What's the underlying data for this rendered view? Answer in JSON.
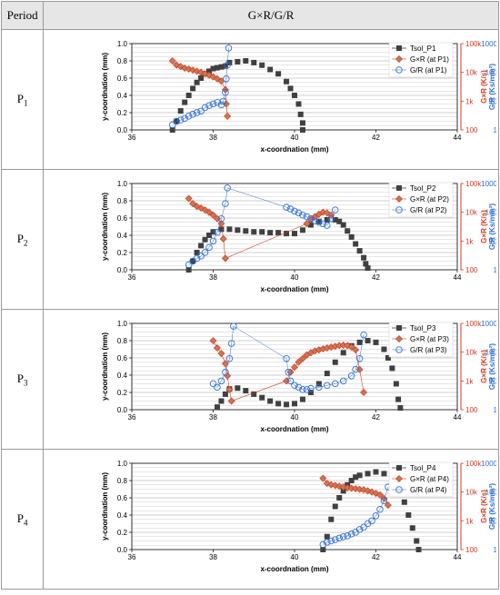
{
  "header": {
    "period": "Period",
    "title": "G×R/G/R"
  },
  "colors": {
    "tsol": "#404040",
    "gr_red": "#d9381e",
    "g_over_r": "#2e6fd6",
    "grid": "#bfbfbf"
  },
  "chart_data": [
    {
      "period_label": "P",
      "period_sub": "1",
      "type": "scatter",
      "xlabel": "x-coordnation (mm)",
      "ylabel": "y-coordnation (mm)",
      "y2label": "G×R (K/s)",
      "y3label": "G/R (Ks/mm²)",
      "xlim": [
        36,
        44
      ],
      "ylim": [
        0,
        1.0
      ],
      "xticks": [
        "36",
        "38",
        "40",
        "42",
        "44"
      ],
      "yticks": [
        "0.0",
        "0.2",
        "0.4",
        "0.6",
        "0.8",
        "1.0"
      ],
      "y2ticks": [
        "100",
        "1k",
        "10k",
        "100k"
      ],
      "y3ticks": [
        "1",
        "10",
        "100",
        "1000"
      ],
      "legend": [
        "Tsol_P1",
        "G×R (at P1)",
        "G/R (at P1)"
      ],
      "series": [
        {
          "key": "tsol",
          "x": [
            37.0,
            37.1,
            37.2,
            37.3,
            37.4,
            37.5,
            37.6,
            37.7,
            37.8,
            37.9,
            38.0,
            38.1,
            38.2,
            38.3,
            38.4,
            38.6,
            38.8,
            39.0,
            39.2,
            39.4,
            39.6,
            39.8,
            39.9,
            40.0,
            40.1,
            40.15,
            40.2,
            40.2
          ],
          "y": [
            0.0,
            0.1,
            0.22,
            0.32,
            0.4,
            0.48,
            0.55,
            0.6,
            0.65,
            0.68,
            0.71,
            0.72,
            0.73,
            0.74,
            0.78,
            0.79,
            0.8,
            0.78,
            0.75,
            0.7,
            0.65,
            0.56,
            0.48,
            0.4,
            0.3,
            0.18,
            0.08,
            0.0
          ]
        },
        {
          "key": "gr",
          "x": [
            37.0,
            37.1,
            37.2,
            37.3,
            37.4,
            37.5,
            37.6,
            37.7,
            37.8,
            37.9,
            38.0,
            38.1,
            38.2,
            38.3,
            38.32,
            38.35
          ],
          "y": [
            25000,
            18000,
            16000,
            14000,
            13000,
            12000,
            11000,
            10000,
            9000,
            8000,
            7000,
            6000,
            5000,
            2500,
            800,
            300
          ]
        },
        {
          "key": "g_over_r",
          "x": [
            37.0,
            37.1,
            37.2,
            37.3,
            37.4,
            37.5,
            37.6,
            37.7,
            37.8,
            37.9,
            38.0,
            38.1,
            38.2,
            38.25,
            38.3,
            38.32,
            38.35,
            38.38
          ],
          "y": [
            1.5,
            2,
            2.2,
            2.5,
            3,
            3.5,
            4,
            4.5,
            6,
            7,
            8,
            9,
            7.5,
            10,
            20,
            60,
            180,
            700
          ]
        }
      ]
    },
    {
      "period_label": "P",
      "period_sub": "2",
      "type": "scatter",
      "xlabel": "x-coordnation (mm)",
      "ylabel": "y-coordnation (mm)",
      "y2label": "G×R (K/s)",
      "y3label": "G/R (Ks/mm²)",
      "xlim": [
        36,
        44
      ],
      "ylim": [
        0,
        1.0
      ],
      "xticks": [
        "36",
        "38",
        "40",
        "42",
        "44"
      ],
      "yticks": [
        "0.0",
        "0.2",
        "0.4",
        "0.6",
        "0.8",
        "1.0"
      ],
      "y2ticks": [
        "100",
        "1k",
        "10k",
        "100k"
      ],
      "y3ticks": [
        "1",
        "10",
        "100",
        "1000"
      ],
      "legend": [
        "Tsol_P2",
        "G×R (at P2)",
        "G/R (at P2)"
      ],
      "series": [
        {
          "key": "tsol",
          "x": [
            37.4,
            37.5,
            37.6,
            37.7,
            37.8,
            37.9,
            38.0,
            38.2,
            38.4,
            38.6,
            38.8,
            39.0,
            39.2,
            39.4,
            39.6,
            39.8,
            40.0,
            40.2,
            40.4,
            40.6,
            40.8,
            41.0,
            41.1,
            41.2,
            41.3,
            41.4,
            41.5,
            41.6,
            41.7,
            41.75,
            41.8
          ],
          "y": [
            0.0,
            0.1,
            0.2,
            0.28,
            0.35,
            0.4,
            0.44,
            0.47,
            0.47,
            0.46,
            0.45,
            0.44,
            0.44,
            0.43,
            0.43,
            0.42,
            0.42,
            0.46,
            0.52,
            0.56,
            0.58,
            0.58,
            0.56,
            0.52,
            0.45,
            0.38,
            0.3,
            0.22,
            0.14,
            0.07,
            0.02
          ]
        },
        {
          "key": "gr",
          "x": [
            37.4,
            37.5,
            37.6,
            37.7,
            37.8,
            37.9,
            38.0,
            38.1,
            38.2,
            38.25,
            38.3,
            40.3,
            40.4,
            40.5,
            40.6,
            40.7,
            40.8,
            40.9
          ],
          "y": [
            30000,
            20000,
            16000,
            14000,
            12000,
            10000,
            8000,
            6000,
            4000,
            1200,
            250,
            4000,
            5500,
            7000,
            8500,
            10000,
            9500,
            8000
          ]
        },
        {
          "key": "g_over_r",
          "x": [
            37.4,
            37.5,
            37.6,
            37.7,
            37.8,
            37.9,
            38.0,
            38.1,
            38.2,
            38.3,
            38.35,
            39.8,
            39.9,
            40.0,
            40.1,
            40.2,
            40.3,
            40.4,
            40.5,
            40.6,
            40.7,
            40.8,
            40.9,
            41.0
          ],
          "y": [
            1.5,
            2,
            2.5,
            3,
            4,
            6,
            10,
            20,
            60,
            200,
            700,
            150,
            130,
            110,
            95,
            80,
            70,
            60,
            50,
            45,
            40,
            35,
            60,
            120
          ]
        }
      ]
    },
    {
      "period_label": "P",
      "period_sub": "3",
      "type": "scatter",
      "xlabel": "x-coordnation (mm)",
      "ylabel": "y-coordnation (mm)",
      "y2label": "G×R (K/s)",
      "y3label": "G/R (Ks/mm²)",
      "xlim": [
        36,
        44
      ],
      "ylim": [
        0,
        1.0
      ],
      "xticks": [
        "36",
        "38",
        "40",
        "42",
        "44"
      ],
      "yticks": [
        "0.0",
        "0.2",
        "0.4",
        "0.6",
        "0.8",
        "1.0"
      ],
      "y2ticks": [
        "100",
        "1k",
        "10k",
        "100k"
      ],
      "y3ticks": [
        "1",
        "10",
        "100",
        "1000"
      ],
      "legend": [
        "Tsol_P3",
        "G×R (at P3)",
        "G/R (at P3)"
      ],
      "series": [
        {
          "key": "tsol",
          "x": [
            38.1,
            38.2,
            38.3,
            38.4,
            38.6,
            38.8,
            39.0,
            39.2,
            39.4,
            39.6,
            39.8,
            40.0,
            40.2,
            40.4,
            40.6,
            40.8,
            41.0,
            41.2,
            41.4,
            41.6,
            41.8,
            42.0,
            42.2,
            42.3,
            42.4,
            42.5,
            42.55,
            42.6
          ],
          "y": [
            0.03,
            0.1,
            0.18,
            0.24,
            0.25,
            0.22,
            0.18,
            0.14,
            0.1,
            0.07,
            0.06,
            0.07,
            0.12,
            0.2,
            0.3,
            0.42,
            0.55,
            0.66,
            0.74,
            0.78,
            0.8,
            0.78,
            0.7,
            0.6,
            0.48,
            0.3,
            0.12,
            0.02
          ]
        },
        {
          "key": "gr",
          "x": [
            38.0,
            38.1,
            38.2,
            38.3,
            38.35,
            38.4,
            38.45,
            39.8,
            39.9,
            40.0,
            40.1,
            40.2,
            40.3,
            40.4,
            40.5,
            40.6,
            40.7,
            40.8,
            40.9,
            41.0,
            41.1,
            41.2,
            41.3,
            41.4,
            41.5,
            41.6,
            41.7
          ],
          "y": [
            25000,
            14000,
            9000,
            4000,
            1500,
            500,
            200,
            1000,
            2000,
            3000,
            4500,
            6000,
            8000,
            9500,
            11000,
            12000,
            13000,
            14000,
            15000,
            16000,
            17000,
            17500,
            17000,
            15000,
            12000,
            2500,
            400
          ]
        },
        {
          "key": "g_over_r",
          "x": [
            38.0,
            38.1,
            38.2,
            38.3,
            38.4,
            38.45,
            38.5,
            39.8,
            39.85,
            39.9,
            40.0,
            40.1,
            40.2,
            40.3,
            40.4,
            40.6,
            40.8,
            41.0,
            41.2,
            41.4,
            41.5,
            41.6,
            41.7
          ],
          "y": [
            8,
            6,
            10,
            20,
            60,
            200,
            800,
            60,
            20,
            10,
            7,
            6,
            5,
            5,
            5.5,
            6,
            7,
            8,
            10,
            15,
            25,
            60,
            400
          ]
        }
      ]
    },
    {
      "period_label": "P",
      "period_sub": "4",
      "type": "scatter",
      "xlabel": "x-coordnation (mm)",
      "ylabel": "y-coordnation (mm)",
      "y2label": "G×R (K/s)",
      "y3label": "G/R (Ks/mm²)",
      "xlim": [
        36,
        44
      ],
      "ylim": [
        0,
        1.0
      ],
      "xticks": [
        "36",
        "38",
        "40",
        "42",
        "44"
      ],
      "yticks": [
        "0.0",
        "0.2",
        "0.4",
        "0.6",
        "0.8",
        "1.0"
      ],
      "y2ticks": [
        "100",
        "1k",
        "10k",
        "100k"
      ],
      "y3ticks": [
        "1",
        "10",
        "100",
        "1000"
      ],
      "legend": [
        "Tsol_P4",
        "G×R (at P4)",
        "G/R (at P4)"
      ],
      "series": [
        {
          "key": "tsol",
          "x": [
            40.7,
            40.8,
            40.9,
            41.0,
            41.1,
            41.2,
            41.3,
            41.4,
            41.5,
            41.6,
            41.8,
            42.0,
            42.2,
            42.4,
            42.5,
            42.6,
            42.7,
            42.8,
            42.9,
            43.0,
            43.05
          ],
          "y": [
            0.0,
            0.15,
            0.35,
            0.5,
            0.6,
            0.68,
            0.75,
            0.8,
            0.84,
            0.86,
            0.88,
            0.9,
            0.88,
            0.84,
            0.78,
            0.7,
            0.55,
            0.4,
            0.25,
            0.1,
            0.0
          ]
        },
        {
          "key": "gr",
          "x": [
            40.7,
            40.8,
            40.9,
            41.0,
            41.1,
            41.2,
            41.3,
            41.4,
            41.5,
            41.6,
            41.7,
            41.8,
            41.9,
            42.0,
            42.1,
            42.2,
            42.3
          ],
          "y": [
            30000,
            20000,
            18000,
            17000,
            16000,
            15000,
            14000,
            13500,
            13000,
            12500,
            12000,
            11000,
            10000,
            9000,
            8000,
            6000,
            3500
          ]
        },
        {
          "key": "g_over_r",
          "x": [
            40.7,
            40.8,
            40.9,
            41.0,
            41.1,
            41.2,
            41.3,
            41.4,
            41.5,
            41.6,
            41.7,
            41.8,
            41.9,
            42.0,
            42.1,
            42.2,
            42.3
          ],
          "y": [
            1.5,
            1.8,
            2,
            2.2,
            2.5,
            2.8,
            3,
            3.5,
            4,
            5,
            6,
            8,
            10,
            15,
            25,
            50,
            150
          ]
        }
      ]
    }
  ]
}
